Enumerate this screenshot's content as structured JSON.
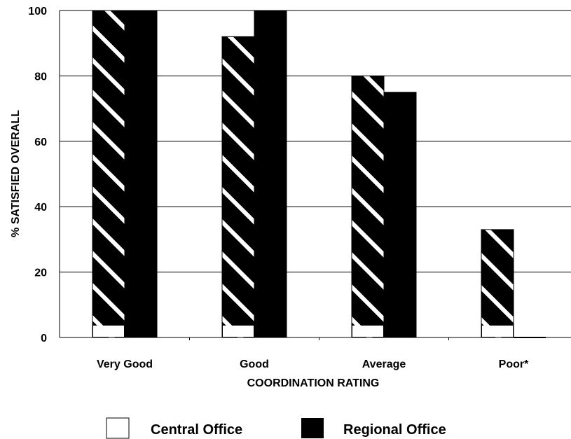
{
  "chart_data": {
    "type": "bar",
    "title": "",
    "xlabel": "COORDINATION RATING",
    "ylabel": "% SATISFIED OVERALL",
    "categories": [
      "Very Good",
      "Good",
      "Average",
      "Poor*"
    ],
    "series": [
      {
        "name": "Central Office",
        "values": [
          100,
          92,
          80,
          33
        ]
      },
      {
        "name": "Regional Office",
        "values": [
          100,
          100,
          75,
          0
        ]
      }
    ],
    "ylim": [
      0,
      100
    ],
    "yticks": [
      0,
      20,
      40,
      60,
      80,
      100
    ],
    "grid": true,
    "legend_position": "bottom"
  },
  "colors": {
    "central_office_fill": "#000000",
    "central_office_hatch": "#ffffff",
    "regional_office_fill": "#000000",
    "gridline": "#000000"
  }
}
